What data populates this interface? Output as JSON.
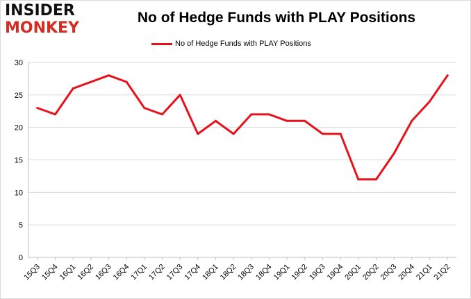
{
  "logo": {
    "line1": "INSIDER",
    "line2": "MONKEY"
  },
  "chart_data": {
    "type": "line",
    "title": "No of Hedge Funds with PLAY Positions",
    "xlabel": "",
    "ylabel": "",
    "categories": [
      "15Q3",
      "15Q4",
      "16Q1",
      "16Q2",
      "16Q3",
      "16Q4",
      "17Q1",
      "17Q2",
      "17Q3",
      "17Q4",
      "18Q1",
      "18Q2",
      "18Q3",
      "18Q4",
      "19Q1",
      "19Q2",
      "19Q3",
      "19Q4",
      "20Q1",
      "20Q2",
      "20Q3",
      "20Q4",
      "21Q1",
      "21Q2"
    ],
    "series": [
      {
        "name": "No of Hedge Funds with PLAY Positions",
        "values": [
          23,
          22,
          26,
          27,
          28,
          27,
          23,
          22,
          25,
          19,
          21,
          19,
          22,
          22,
          21,
          21,
          19,
          19,
          12,
          12,
          16,
          21,
          24,
          28
        ],
        "color": "#e8111b"
      }
    ],
    "ylim": [
      0,
      30
    ],
    "yticks": [
      0,
      5,
      10,
      15,
      20,
      25,
      30
    ],
    "grid": true,
    "legend_position": "top-center"
  }
}
